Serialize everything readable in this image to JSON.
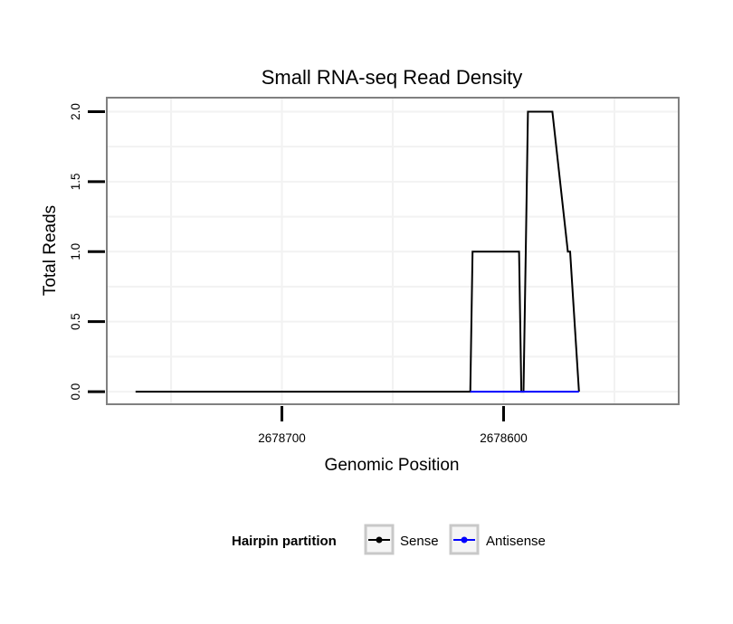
{
  "chart_data": {
    "type": "line",
    "title": "Small RNA-seq Read Density",
    "xlabel": "Genomic Position",
    "ylabel": "Total Reads",
    "xlim": [
      2678779,
      2678521
    ],
    "ylim": [
      -0.09,
      2.1
    ],
    "x_reversed": true,
    "xticks": [
      2678700,
      2678600
    ],
    "xtick_labels": [
      "2678700",
      "2678600"
    ],
    "yticks": [
      0,
      0.5,
      1,
      1.5,
      2
    ],
    "ytick_labels": [
      "0.0",
      "0.5",
      "1.0",
      "1.5",
      "2.0"
    ],
    "grid": true,
    "legend": {
      "title": "Hairpin partition",
      "position": "bottom",
      "entries": [
        {
          "name": "Sense",
          "color": "#000000"
        },
        {
          "name": "Antisense",
          "color": "#0000ff"
        }
      ]
    },
    "series": [
      {
        "name": "Sense",
        "color": "#000000",
        "x": [
          2678766,
          2678615,
          2678614,
          2678593,
          2678592,
          2678591,
          2678590,
          2678589,
          2678579,
          2678578,
          2678571,
          2678570,
          2678566
        ],
        "y": [
          0,
          0,
          1,
          1,
          0,
          0,
          1,
          2,
          2,
          2,
          1,
          1,
          0
        ]
      },
      {
        "name": "Antisense",
        "color": "#0000ff",
        "x": [
          2678615,
          2678566
        ],
        "y": [
          0,
          0
        ]
      }
    ]
  }
}
